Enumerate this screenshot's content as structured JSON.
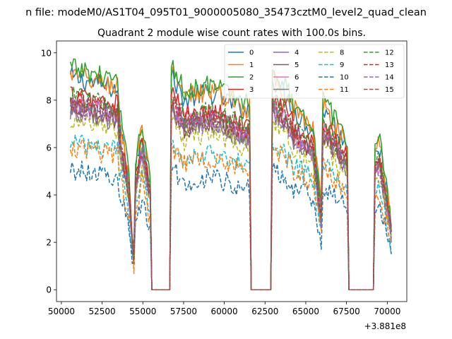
{
  "figure": {
    "suptitle": "n file: modeM0/AS1T04_095T01_9000005080_35473cztM0_level2_quad_clean",
    "title": "Quadrant 2 module wise count rates with 100.0s bins.",
    "x_offset_label": "+3.881e8"
  },
  "chart_data": {
    "type": "line",
    "title": "Quadrant 2 module wise count rates with 100.0s bins.",
    "xlabel": "",
    "ylabel": "",
    "x_offset": 388100000,
    "xlim": [
      49700,
      71200
    ],
    "ylim": [
      -0.5,
      10.5
    ],
    "xticks": [
      50000,
      52500,
      55000,
      57500,
      60000,
      62500,
      65000,
      67500,
      70000
    ],
    "yticks": [
      0,
      2,
      4,
      6,
      8,
      10
    ],
    "x_start": 50550,
    "x_step": 100,
    "x_end": 70250,
    "gaps": [
      [
        55550,
        56650
      ],
      [
        61650,
        62850
      ],
      [
        67650,
        69150
      ]
    ],
    "grid": false,
    "legend": {
      "position": "top-right",
      "columns": 4
    },
    "series": [
      {
        "name": "0",
        "color": "#1f77b4",
        "dash": "solid",
        "level": 8.8,
        "dip": 1.5
      },
      {
        "name": "1",
        "color": "#ff7f0e",
        "dash": "solid",
        "level": 8.9,
        "dip": 2.0
      },
      {
        "name": "2",
        "color": "#2ca02c",
        "dash": "solid",
        "level": 9.2,
        "dip": 2.2
      },
      {
        "name": "3",
        "color": "#d62728",
        "dash": "solid",
        "level": 8.1,
        "dip": 2.1
      },
      {
        "name": "4",
        "color": "#9467bd",
        "dash": "solid",
        "level": 7.6,
        "dip": 1.9
      },
      {
        "name": "5",
        "color": "#8c564b",
        "dash": "solid",
        "level": 7.5,
        "dip": 2.0
      },
      {
        "name": "6",
        "color": "#e377c2",
        "dash": "solid",
        "level": 7.7,
        "dip": 2.0
      },
      {
        "name": "7",
        "color": "#7f7f7f",
        "dash": "solid",
        "level": 7.4,
        "dip": 2.0
      },
      {
        "name": "8",
        "color": "#bcbd22",
        "dash": "dashed",
        "level": 7.0,
        "dip": 1.9
      },
      {
        "name": "9",
        "color": "#17becf",
        "dash": "dashed",
        "level": 6.1,
        "dip": 1.8
      },
      {
        "name": "10",
        "color": "#1f77b4",
        "dash": "dashed",
        "level": 5.0,
        "dip": 1.1
      },
      {
        "name": "11",
        "color": "#ff7f0e",
        "dash": "dashed",
        "level": 5.9,
        "dip": 1.9
      },
      {
        "name": "12",
        "color": "#2ca02c",
        "dash": "dashed",
        "level": 8.0,
        "dip": 2.2
      },
      {
        "name": "13",
        "color": "#d62728",
        "dash": "dashed",
        "level": 7.8,
        "dip": 2.0
      },
      {
        "name": "14",
        "color": "#9467bd",
        "dash": "dashed",
        "level": 7.5,
        "dip": 2.0
      },
      {
        "name": "15",
        "color": "#8c564b",
        "dash": "dashed",
        "level": 7.7,
        "dip": 2.0
      }
    ]
  }
}
